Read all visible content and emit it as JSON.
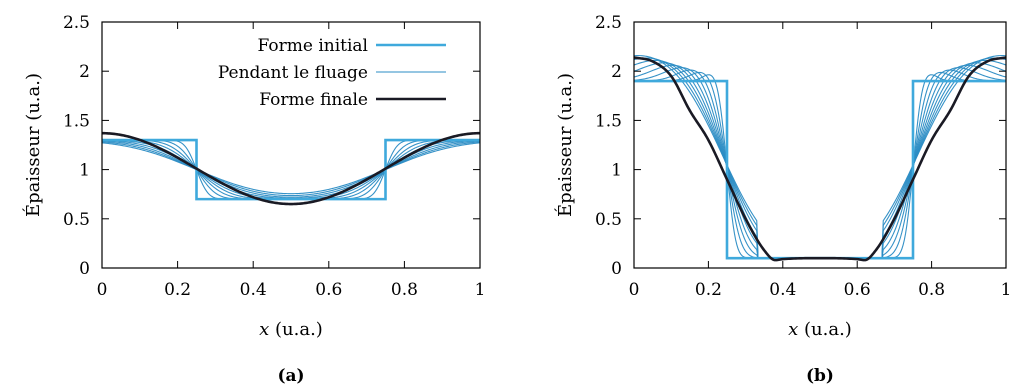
{
  "colors": {
    "initial": "#3fa9dc",
    "creep": "#2b8cc4",
    "final": "#1a1a24",
    "axis": "#000000"
  },
  "chart_data": [
    {
      "type": "line",
      "caption": "(a)",
      "xlabel_var": "x",
      "xlabel_unit": " (u.a.)",
      "ylabel": "Épaisseur (u.a.)",
      "xlim": [
        0,
        1
      ],
      "ylim": [
        0,
        2.5
      ],
      "xticks": [
        "0",
        "0.2",
        "0.4",
        "0.6",
        "0.8",
        "1"
      ],
      "xtick_values": [
        0,
        0.2,
        0.4,
        0.6,
        0.8,
        1
      ],
      "yticks": [
        "0",
        "0.5",
        "1",
        "1.5",
        "2",
        "2.5"
      ],
      "ytick_values": [
        0,
        0.5,
        1,
        1.5,
        2,
        2.5
      ],
      "legend": {
        "position": "top-right",
        "entries": [
          {
            "name": "Forme initial",
            "role": "initial"
          },
          {
            "name": "Pendant le fluage",
            "role": "creep"
          },
          {
            "name": "Forme finale",
            "role": "final"
          }
        ]
      },
      "model": {
        "high": 1.3,
        "low": 0.7,
        "edges": [
          0.25,
          0.75
        ],
        "smooth_steps": 9,
        "final_kind": "cosine",
        "final_amp": 0.36,
        "final_mean": 1.01
      },
      "series": [
        {
          "role": "initial",
          "x": [
            0,
            0.25,
            0.25,
            0.75,
            0.75,
            1
          ],
          "y": [
            1.3,
            1.3,
            0.7,
            0.7,
            1.3,
            1.3
          ]
        },
        {
          "role": "final",
          "x": [
            0,
            0.1,
            0.2,
            0.25,
            0.3,
            0.4,
            0.5,
            0.6,
            0.7,
            0.75,
            0.8,
            0.9,
            1
          ],
          "y": [
            1.37,
            1.3,
            1.12,
            1.01,
            0.9,
            0.72,
            0.65,
            0.72,
            0.9,
            1.01,
            1.12,
            1.3,
            1.37
          ]
        }
      ]
    },
    {
      "type": "line",
      "caption": "(b)",
      "xlabel_var": "x",
      "xlabel_unit": " (u.a.)",
      "ylabel": "Épaisseur (u.a.)",
      "xlim": [
        0,
        1
      ],
      "ylim": [
        0,
        2.5
      ],
      "xticks": [
        "0",
        "0.2",
        "0.4",
        "0.6",
        "0.8",
        "1"
      ],
      "xtick_values": [
        0,
        0.2,
        0.4,
        0.6,
        0.8,
        1
      ],
      "yticks": [
        "0",
        "0.5",
        "1",
        "1.5",
        "2",
        "2.5"
      ],
      "ytick_values": [
        0,
        0.5,
        1,
        1.5,
        2,
        2.5
      ],
      "model": {
        "high": 1.9,
        "low": 0.1,
        "edges": [
          0.25,
          0.75
        ],
        "smooth_steps": 9,
        "final_kind": "thin-film"
      },
      "series": [
        {
          "role": "initial",
          "x": [
            0,
            0.25,
            0.25,
            0.75,
            0.75,
            1
          ],
          "y": [
            1.9,
            1.9,
            0.1,
            0.1,
            1.9,
            1.9
          ]
        },
        {
          "role": "final",
          "x": [
            0,
            0.05,
            0.1,
            0.15,
            0.2,
            0.25,
            0.3,
            0.35,
            0.38,
            0.4,
            0.5,
            0.6,
            0.62,
            0.65,
            0.7,
            0.75,
            0.8,
            0.85,
            0.9,
            0.95,
            1
          ],
          "y": [
            2.14,
            2.1,
            1.95,
            1.6,
            1.3,
            0.9,
            0.5,
            0.18,
            0.08,
            0.09,
            0.1,
            0.09,
            0.08,
            0.18,
            0.5,
            0.9,
            1.3,
            1.6,
            1.95,
            2.1,
            2.14
          ]
        }
      ]
    }
  ]
}
